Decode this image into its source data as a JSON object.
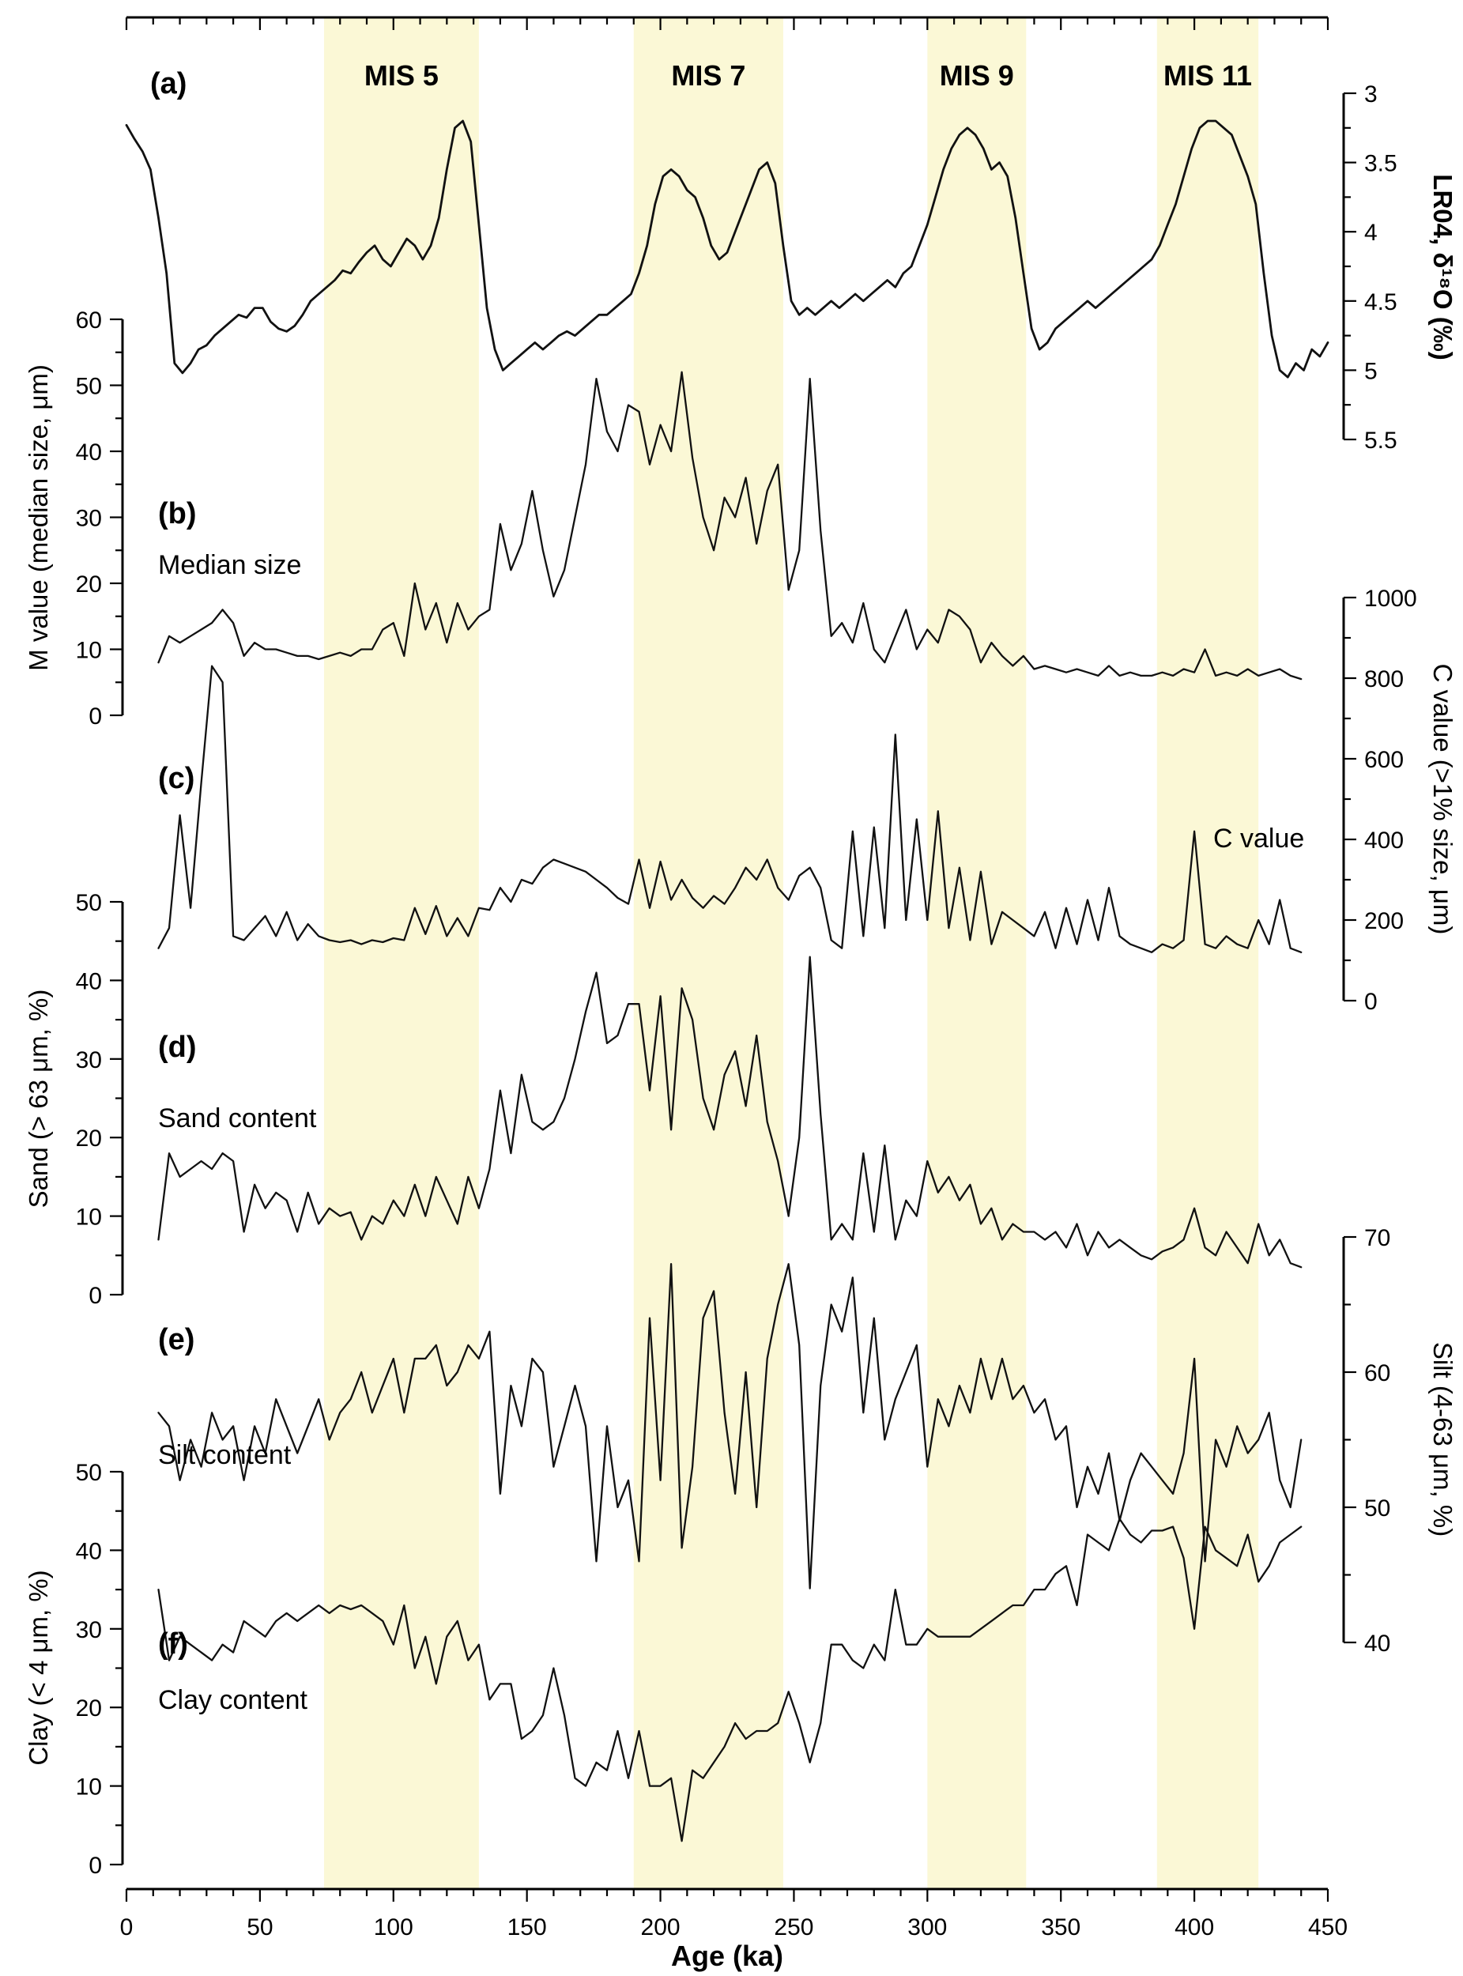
{
  "figure": {
    "x_axis": {
      "title": "Age (ka)",
      "min": 0,
      "max": 450,
      "major_tick_step": 50,
      "minor_tick_step": 10,
      "tick_labels": [
        "0",
        "50",
        "100",
        "150",
        "200",
        "250",
        "300",
        "350",
        "400",
        "450"
      ]
    },
    "bands": [
      {
        "label": "MIS 5",
        "x_from": 74,
        "x_to": 132
      },
      {
        "label": "MIS 7",
        "x_from": 190,
        "x_to": 246
      },
      {
        "label": "MIS 9",
        "x_from": 300,
        "x_to": 337
      },
      {
        "label": "MIS 11",
        "x_from": 386,
        "x_to": 424
      }
    ],
    "colors": {
      "band_fill": "#FBF8D6",
      "mis_label": "#1B4F9C",
      "curve": "#111111",
      "axis": "#000000"
    }
  },
  "chart_data": [
    {
      "id": "a",
      "type": "line",
      "panel_label": "(a)",
      "series_label": "",
      "ylabel": "LR04, δ¹⁸O (‰)",
      "axis_side": "right",
      "y_inverted": true,
      "ylim": [
        3,
        5.5
      ],
      "yticks": [
        3,
        3.5,
        4,
        4.5,
        5,
        5.5
      ],
      "minor_step": 0.25,
      "x_start": 0,
      "x_step": 3,
      "y": [
        3.23,
        3.33,
        3.42,
        3.55,
        3.9,
        4.3,
        4.95,
        5.02,
        4.95,
        4.85,
        4.82,
        4.75,
        4.7,
        4.65,
        4.6,
        4.62,
        4.55,
        4.55,
        4.65,
        4.7,
        4.72,
        4.68,
        4.6,
        4.5,
        4.45,
        4.4,
        4.35,
        4.28,
        4.3,
        4.22,
        4.15,
        4.1,
        4.2,
        4.25,
        4.15,
        4.05,
        4.1,
        4.2,
        4.1,
        3.9,
        3.55,
        3.25,
        3.2,
        3.35,
        3.95,
        4.55,
        4.85,
        5.0,
        4.95,
        4.9,
        4.85,
        4.8,
        4.85,
        4.8,
        4.75,
        4.72,
        4.75,
        4.7,
        4.65,
        4.6,
        4.6,
        4.55,
        4.5,
        4.45,
        4.3,
        4.1,
        3.8,
        3.6,
        3.55,
        3.6,
        3.7,
        3.75,
        3.9,
        4.1,
        4.2,
        4.15,
        4.0,
        3.85,
        3.7,
        3.55,
        3.5,
        3.65,
        4.1,
        4.5,
        4.6,
        4.55,
        4.6,
        4.55,
        4.5,
        4.55,
        4.5,
        4.45,
        4.5,
        4.45,
        4.4,
        4.35,
        4.4,
        4.3,
        4.25,
        4.1,
        3.95,
        3.75,
        3.55,
        3.4,
        3.3,
        3.25,
        3.3,
        3.4,
        3.55,
        3.5,
        3.6,
        3.9,
        4.3,
        4.7,
        4.85,
        4.8,
        4.7,
        4.65,
        4.6,
        4.55,
        4.5,
        4.55,
        4.5,
        4.45,
        4.4,
        4.35,
        4.3,
        4.25,
        4.2,
        4.1,
        3.95,
        3.8,
        3.6,
        3.4,
        3.25,
        3.2,
        3.2,
        3.25,
        3.3,
        3.45,
        3.6,
        3.8,
        4.3,
        4.75,
        5.0,
        5.05,
        4.95,
        5.0,
        4.85,
        4.9,
        4.8
      ]
    },
    {
      "id": "b",
      "type": "line",
      "panel_label": "(b)",
      "series_label": "Median size",
      "ylabel": "M value (median size, μm)",
      "axis_side": "left",
      "y_inverted": false,
      "ylim": [
        0,
        60
      ],
      "yticks": [
        0,
        10,
        20,
        30,
        40,
        50,
        60
      ],
      "minor_step": 5,
      "x_start": 12,
      "x_step": 4,
      "y": [
        8,
        12,
        11,
        12,
        13,
        14,
        16,
        14,
        9,
        11,
        10,
        10,
        9.5,
        9,
        9,
        8.5,
        9,
        9.5,
        9,
        10,
        10,
        13,
        14,
        9,
        20,
        13,
        17,
        11,
        17,
        13,
        15,
        16,
        29,
        22,
        26,
        34,
        25,
        18,
        22,
        30,
        38,
        51,
        43,
        40,
        47,
        46,
        38,
        44,
        40,
        52,
        39,
        30,
        25,
        33,
        30,
        36,
        26,
        34,
        38,
        19,
        25,
        51,
        28,
        12,
        14,
        11,
        17,
        10,
        8,
        12,
        16,
        10,
        13,
        11,
        16,
        15,
        13,
        8,
        11,
        9,
        7.5,
        9,
        7,
        7.5,
        7,
        6.5,
        7,
        6.5,
        6,
        7.5,
        6,
        6.5,
        6,
        6,
        6.5,
        6,
        7,
        6.5,
        10,
        6,
        6.5,
        6,
        7,
        6,
        6.5,
        7,
        6,
        5.5
      ]
    },
    {
      "id": "c",
      "type": "line",
      "panel_label": "(c)",
      "series_label": "C value",
      "ylabel": "C value (>1% size, μm)",
      "axis_side": "right",
      "y_inverted": false,
      "ylim": [
        0,
        1000
      ],
      "yticks": [
        0,
        200,
        400,
        600,
        800,
        1000
      ],
      "minor_step": 100,
      "x_start": 12,
      "x_step": 4,
      "y": [
        130,
        180,
        460,
        230,
        540,
        830,
        790,
        160,
        150,
        180,
        210,
        160,
        220,
        150,
        190,
        160,
        150,
        145,
        150,
        140,
        150,
        145,
        155,
        150,
        230,
        165,
        235,
        160,
        205,
        160,
        230,
        225,
        280,
        245,
        300,
        290,
        330,
        350,
        340,
        330,
        320,
        300,
        280,
        255,
        240,
        350,
        230,
        345,
        250,
        300,
        255,
        230,
        260,
        240,
        280,
        330,
        300,
        350,
        280,
        250,
        310,
        330,
        280,
        150,
        130,
        420,
        160,
        430,
        180,
        660,
        200,
        450,
        200,
        470,
        180,
        330,
        150,
        320,
        140,
        220,
        200,
        180,
        160,
        220,
        130,
        230,
        140,
        250,
        150,
        280,
        160,
        140,
        130,
        120,
        140,
        130,
        150,
        420,
        140,
        130,
        160,
        140,
        130,
        200,
        140,
        250,
        130,
        120
      ]
    },
    {
      "id": "d",
      "type": "line",
      "panel_label": "(d)",
      "series_label": "Sand content",
      "ylabel": "Sand (> 63 μm, %)",
      "axis_side": "left",
      "y_inverted": false,
      "ylim": [
        0,
        50
      ],
      "yticks": [
        0,
        10,
        20,
        30,
        40,
        50
      ],
      "minor_step": 5,
      "x_start": 12,
      "x_step": 4,
      "y": [
        7,
        18,
        15,
        16,
        17,
        16,
        18,
        17,
        8,
        14,
        11,
        13,
        12,
        8,
        13,
        9,
        11,
        10,
        10.5,
        7,
        10,
        9,
        12,
        10,
        14,
        10,
        15,
        12,
        9,
        15,
        11,
        16,
        26,
        18,
        28,
        22,
        21,
        22,
        25,
        30,
        36,
        41,
        32,
        33,
        37,
        37,
        26,
        38,
        21,
        39,
        35,
        25,
        21,
        28,
        31,
        24,
        33,
        22,
        17,
        10,
        20,
        43,
        23,
        7,
        9,
        7,
        18,
        8,
        19,
        7,
        12,
        10,
        17,
        13,
        15,
        12,
        14,
        9,
        11,
        7,
        9,
        8,
        8,
        7,
        8,
        6,
        9,
        5,
        8,
        6,
        7,
        6,
        5,
        4.5,
        5.5,
        6,
        7,
        11,
        6,
        5,
        8,
        6,
        4,
        9,
        5,
        7,
        4,
        3.5
      ]
    },
    {
      "id": "e",
      "type": "line",
      "panel_label": "(e)",
      "series_label": "Silt content",
      "ylabel": "Silt (4-63 μm, %)",
      "axis_side": "right",
      "y_inverted": false,
      "ylim": [
        40,
        70
      ],
      "yticks": [
        40,
        50,
        60,
        70
      ],
      "minor_step": 5,
      "x_start": 12,
      "x_step": 4,
      "y": [
        57,
        56,
        52,
        55,
        53,
        57,
        55,
        56,
        52,
        56,
        54,
        58,
        56,
        54,
        56,
        58,
        55,
        57,
        58,
        60,
        57,
        59,
        61,
        57,
        61,
        61,
        62,
        59,
        60,
        62,
        61,
        63,
        51,
        59,
        56,
        61,
        60,
        53,
        56,
        59,
        56,
        46,
        56,
        50,
        52,
        46,
        64,
        52,
        68,
        47,
        53,
        64,
        66,
        57,
        51,
        60,
        50,
        61,
        65,
        68,
        62,
        44,
        59,
        65,
        63,
        67,
        57,
        64,
        55,
        58,
        60,
        62,
        53,
        58,
        56,
        59,
        57,
        61,
        58,
        61,
        58,
        59,
        57,
        58,
        55,
        56,
        50,
        53,
        51,
        54,
        49,
        52,
        54,
        53,
        52,
        51,
        54,
        61,
        46,
        55,
        53,
        56,
        54,
        55,
        57,
        52,
        50,
        55
      ]
    },
    {
      "id": "f",
      "type": "line",
      "panel_label": "(f)",
      "series_label": "Clay content",
      "ylabel": "Clay (< 4 μm, %)",
      "axis_side": "left",
      "y_inverted": false,
      "ylim": [
        0,
        50
      ],
      "yticks": [
        0,
        10,
        20,
        30,
        40,
        50
      ],
      "minor_step": 5,
      "x_start": 12,
      "x_step": 4,
      "y": [
        35,
        26,
        29,
        28,
        27,
        26,
        28,
        27,
        31,
        30,
        29,
        31,
        32,
        31,
        32,
        33,
        32,
        33,
        32.5,
        33,
        32,
        31,
        28,
        33,
        25,
        29,
        23,
        29,
        31,
        26,
        28,
        21,
        23,
        23,
        16,
        17,
        19,
        25,
        19,
        11,
        10,
        13,
        12,
        17,
        11,
        17,
        10,
        10,
        11,
        3,
        12,
        11,
        13,
        15,
        18,
        16,
        17,
        17,
        18,
        22,
        18,
        13,
        18,
        28,
        28,
        26,
        25,
        28,
        26,
        35,
        28,
        28,
        30,
        29,
        29,
        29,
        29,
        30,
        31,
        32,
        33,
        33,
        35,
        35,
        37,
        38,
        33,
        42,
        41,
        40,
        44,
        42,
        41,
        42.5,
        42.5,
        43,
        39,
        30,
        43,
        40,
        39,
        38,
        42,
        36,
        38,
        41,
        42,
        43
      ]
    }
  ]
}
